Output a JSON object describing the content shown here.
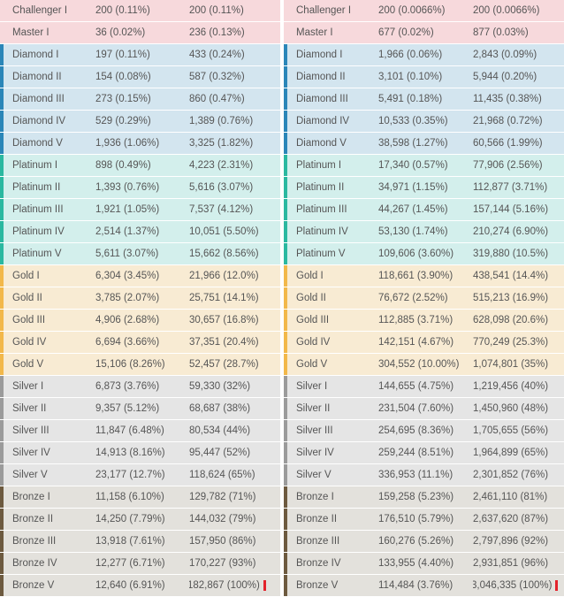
{
  "left_table": {
    "rows": [
      {
        "tier": "Challenger I",
        "a": "200 (0.11%)",
        "b": "200 (0.11%)",
        "group": "challenger"
      },
      {
        "tier": "Master I",
        "a": "36 (0.02%)",
        "b": "236 (0.13%)",
        "group": "master"
      },
      {
        "tier": "Diamond I",
        "a": "197 (0.11%)",
        "b": "433 (0.24%)",
        "group": "diamond"
      },
      {
        "tier": "Diamond II",
        "a": "154 (0.08%)",
        "b": "587 (0.32%)",
        "group": "diamond"
      },
      {
        "tier": "Diamond III",
        "a": "273 (0.15%)",
        "b": "860 (0.47%)",
        "group": "diamond"
      },
      {
        "tier": "Diamond IV",
        "a": "529 (0.29%)",
        "b": "1,389 (0.76%)",
        "group": "diamond"
      },
      {
        "tier": "Diamond V",
        "a": "1,936 (1.06%)",
        "b": "3,325 (1.82%)",
        "group": "diamond"
      },
      {
        "tier": "Platinum I",
        "a": "898 (0.49%)",
        "b": "4,223 (2.31%)",
        "group": "platinum"
      },
      {
        "tier": "Platinum II",
        "a": "1,393 (0.76%)",
        "b": "5,616 (3.07%)",
        "group": "platinum"
      },
      {
        "tier": "Platinum III",
        "a": "1,921 (1.05%)",
        "b": "7,537 (4.12%)",
        "group": "platinum"
      },
      {
        "tier": "Platinum IV",
        "a": "2,514 (1.37%)",
        "b": "10,051 (5.50%)",
        "group": "platinum"
      },
      {
        "tier": "Platinum V",
        "a": "5,611 (3.07%)",
        "b": "15,662 (8.56%)",
        "group": "platinum"
      },
      {
        "tier": "Gold I",
        "a": "6,304 (3.45%)",
        "b": "21,966 (12.0%)",
        "group": "gold"
      },
      {
        "tier": "Gold II",
        "a": "3,785 (2.07%)",
        "b": "25,751 (14.1%)",
        "group": "gold"
      },
      {
        "tier": "Gold III",
        "a": "4,906 (2.68%)",
        "b": "30,657 (16.8%)",
        "group": "gold"
      },
      {
        "tier": "Gold IV",
        "a": "6,694 (3.66%)",
        "b": "37,351 (20.4%)",
        "group": "gold"
      },
      {
        "tier": "Gold V",
        "a": "15,106 (8.26%)",
        "b": "52,457 (28.7%)",
        "group": "gold"
      },
      {
        "tier": "Silver I",
        "a": "6,873 (3.76%)",
        "b": "59,330 (32%)",
        "group": "silver"
      },
      {
        "tier": "Silver II",
        "a": "9,357 (5.12%)",
        "b": "68,687 (38%)",
        "group": "silver"
      },
      {
        "tier": "Silver III",
        "a": "11,847 (6.48%)",
        "b": "80,534 (44%)",
        "group": "silver"
      },
      {
        "tier": "Silver IV",
        "a": "14,913 (8.16%)",
        "b": "95,447 (52%)",
        "group": "silver"
      },
      {
        "tier": "Silver V",
        "a": "23,177 (12.7%)",
        "b": "118,624 (65%)",
        "group": "silver"
      },
      {
        "tier": "Bronze I",
        "a": "11,158 (6.10%)",
        "b": "129,782 (71%)",
        "group": "bronze"
      },
      {
        "tier": "Bronze II",
        "a": "14,250 (7.79%)",
        "b": "144,032 (79%)",
        "group": "bronze"
      },
      {
        "tier": "Bronze III",
        "a": "13,918 (7.61%)",
        "b": "157,950 (86%)",
        "group": "bronze"
      },
      {
        "tier": "Bronze IV",
        "a": "12,277 (6.71%)",
        "b": "170,227 (93%)",
        "group": "bronze"
      },
      {
        "tier": "Bronze V",
        "a": "12,640 (6.91%)",
        "b": "182,867 (100%)",
        "group": "bronze",
        "highlight": true
      }
    ]
  },
  "right_table": {
    "rows": [
      {
        "tier": "Challenger I",
        "a": "200 (0.0066%)",
        "b": "200 (0.0066%)",
        "group": "challenger"
      },
      {
        "tier": "Master I",
        "a": "677 (0.02%)",
        "b": "877 (0.03%)",
        "group": "master"
      },
      {
        "tier": "Diamond I",
        "a": "1,966 (0.06%)",
        "b": "2,843 (0.09%)",
        "group": "diamond"
      },
      {
        "tier": "Diamond II",
        "a": "3,101 (0.10%)",
        "b": "5,944 (0.20%)",
        "group": "diamond"
      },
      {
        "tier": "Diamond III",
        "a": "5,491 (0.18%)",
        "b": "11,435 (0.38%)",
        "group": "diamond"
      },
      {
        "tier": "Diamond IV",
        "a": "10,533 (0.35%)",
        "b": "21,968 (0.72%)",
        "group": "diamond"
      },
      {
        "tier": "Diamond V",
        "a": "38,598 (1.27%)",
        "b": "60,566 (1.99%)",
        "group": "diamond"
      },
      {
        "tier": "Platinum I",
        "a": "17,340 (0.57%)",
        "b": "77,906 (2.56%)",
        "group": "platinum"
      },
      {
        "tier": "Platinum II",
        "a": "34,971 (1.15%)",
        "b": "112,877 (3.71%)",
        "group": "platinum"
      },
      {
        "tier": "Platinum III",
        "a": "44,267 (1.45%)",
        "b": "157,144 (5.16%)",
        "group": "platinum"
      },
      {
        "tier": "Platinum IV",
        "a": "53,130 (1.74%)",
        "b": "210,274 (6.90%)",
        "group": "platinum"
      },
      {
        "tier": "Platinum V",
        "a": "109,606 (3.60%)",
        "b": "319,880 (10.5%)",
        "group": "platinum"
      },
      {
        "tier": "Gold I",
        "a": "118,661 (3.90%)",
        "b": "438,541 (14.4%)",
        "group": "gold"
      },
      {
        "tier": "Gold II",
        "a": "76,672 (2.52%)",
        "b": "515,213 (16.9%)",
        "group": "gold"
      },
      {
        "tier": "Gold III",
        "a": "112,885 (3.71%)",
        "b": "628,098 (20.6%)",
        "group": "gold"
      },
      {
        "tier": "Gold IV",
        "a": "142,151 (4.67%)",
        "b": "770,249 (25.3%)",
        "group": "gold"
      },
      {
        "tier": "Gold V",
        "a": "304,552 (10.00%)",
        "b": "1,074,801 (35%)",
        "group": "gold"
      },
      {
        "tier": "Silver I",
        "a": "144,655 (4.75%)",
        "b": "1,219,456 (40%)",
        "group": "silver"
      },
      {
        "tier": "Silver II",
        "a": "231,504 (7.60%)",
        "b": "1,450,960 (48%)",
        "group": "silver"
      },
      {
        "tier": "Silver III",
        "a": "254,695 (8.36%)",
        "b": "1,705,655 (56%)",
        "group": "silver"
      },
      {
        "tier": "Silver IV",
        "a": "259,244 (8.51%)",
        "b": "1,964,899 (65%)",
        "group": "silver"
      },
      {
        "tier": "Silver V",
        "a": "336,953 (11.1%)",
        "b": "2,301,852 (76%)",
        "group": "silver"
      },
      {
        "tier": "Bronze I",
        "a": "159,258 (5.23%)",
        "b": "2,461,110 (81%)",
        "group": "bronze"
      },
      {
        "tier": "Bronze II",
        "a": "176,510 (5.79%)",
        "b": "2,637,620 (87%)",
        "group": "bronze"
      },
      {
        "tier": "Bronze III",
        "a": "160,276 (5.26%)",
        "b": "2,797,896 (92%)",
        "group": "bronze"
      },
      {
        "tier": "Bronze IV",
        "a": "133,955 (4.40%)",
        "b": "2,931,851 (96%)",
        "group": "bronze"
      },
      {
        "tier": "Bronze V",
        "a": "114,484 (3.76%)",
        "b": "3,046,335 (100%)",
        "group": "bronze",
        "highlight": true
      }
    ]
  },
  "colors": {
    "highlight_border": "#e3222b",
    "challenger": "#f7d9dc",
    "diamond": "#2b86b8",
    "platinum": "#2bb8a0",
    "gold": "#f2b84a",
    "silver": "#9b9b9b",
    "bronze": "#6d5a3f"
  }
}
